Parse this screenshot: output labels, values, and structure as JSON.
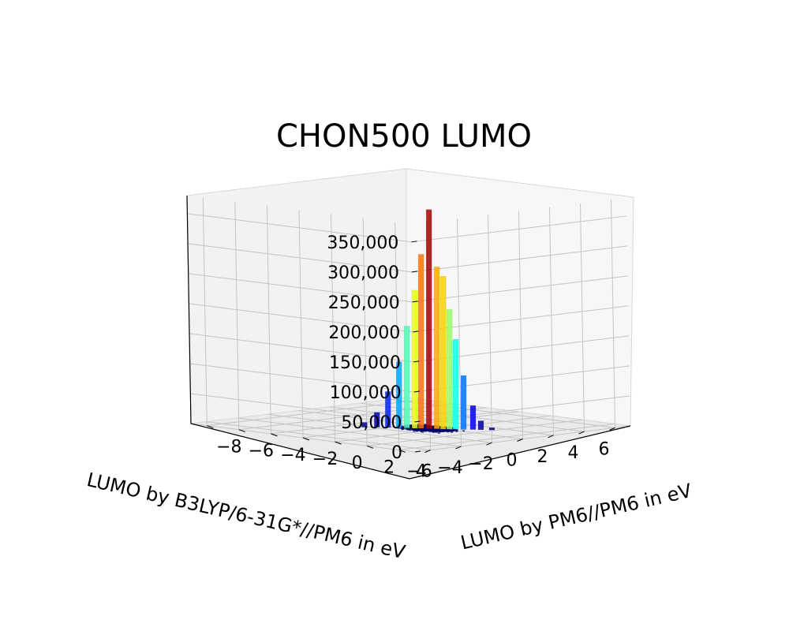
{
  "chart_data": {
    "type": "bar3d",
    "title": "CHON500 LUMO",
    "xlabel": "LUMO by B3LYP/6-31G*//PM6 in eV",
    "ylabel": "LUMO by PM6//PM6 in eV",
    "zlabel": "",
    "x_ticks": [
      "−6",
      "−4",
      "−2",
      "0",
      "2",
      "4",
      "6"
    ],
    "y_ticks": [
      "4",
      "2",
      "0",
      "−2",
      "−4",
      "−6",
      "−8"
    ],
    "z_ticks": [
      "0",
      "50,000",
      "100,000",
      "150,000",
      "200,000",
      "250,000",
      "300,000",
      "350,000"
    ],
    "xlim": [
      -7,
      7
    ],
    "ylim": [
      -9,
      5
    ],
    "zlim": [
      0,
      380000
    ],
    "grid": true,
    "colormap": "jet",
    "peak": {
      "x": -0.4,
      "y": -0.5,
      "z": 365000
    },
    "bars": [
      {
        "x": -0.4,
        "y": -0.5,
        "z": 365000
      },
      {
        "x": -0.2,
        "y": -0.2,
        "z": 270000
      },
      {
        "x": -0.6,
        "y": -0.8,
        "z": 290000
      },
      {
        "x": -0.1,
        "y": 0.1,
        "z": 255000
      },
      {
        "x": -0.8,
        "y": -1.0,
        "z": 230000
      },
      {
        "x": 0.1,
        "y": 0.3,
        "z": 200000
      },
      {
        "x": -1.0,
        "y": -1.3,
        "z": 170000
      },
      {
        "x": 0.3,
        "y": 0.5,
        "z": 150000
      },
      {
        "x": -1.2,
        "y": -1.6,
        "z": 110000
      },
      {
        "x": 0.5,
        "y": 0.8,
        "z": 90000
      },
      {
        "x": -1.5,
        "y": -2.0,
        "z": 60000
      },
      {
        "x": 0.8,
        "y": 1.1,
        "z": 40000
      },
      {
        "x": -1.8,
        "y": -2.4,
        "z": 25000
      },
      {
        "x": 1.0,
        "y": 1.4,
        "z": 15000
      },
      {
        "x": -2.2,
        "y": -2.8,
        "z": 8000
      },
      {
        "x": 1.3,
        "y": 1.8,
        "z": 4000
      }
    ]
  }
}
